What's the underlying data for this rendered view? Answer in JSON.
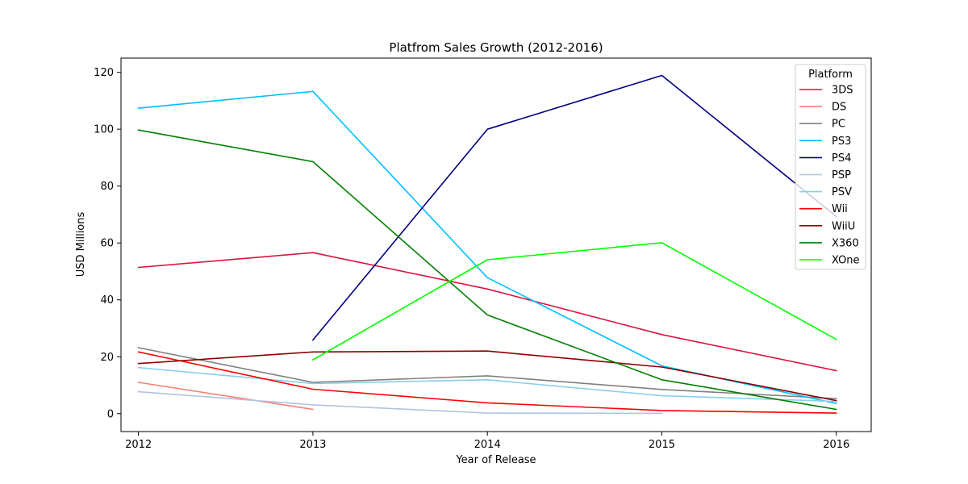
{
  "chart_data": {
    "type": "line",
    "title": "Platfrom Sales Growth (2012-2016)",
    "xlabel": "Year of Release",
    "ylabel": "USD Millions",
    "x": [
      2012,
      2013,
      2014,
      2015,
      2016
    ],
    "ylim": [
      -6.3,
      125
    ],
    "yticks": [
      0,
      20,
      40,
      60,
      80,
      100,
      120
    ],
    "grid": false,
    "legend": {
      "title": "Platform",
      "placement": "top-right"
    },
    "series": [
      {
        "name": "3DS",
        "color": "#dc143c",
        "values": [
          51.4,
          56.6,
          43.8,
          27.8,
          15.1
        ]
      },
      {
        "name": "DS",
        "color": "#fa8072",
        "values": [
          11.0,
          1.5,
          null,
          null,
          null
        ]
      },
      {
        "name": "PC",
        "color": "#808080",
        "values": [
          23.2,
          11.0,
          13.3,
          8.5,
          5.3
        ]
      },
      {
        "name": "PS3",
        "color": "#00bfff",
        "values": [
          107.4,
          113.3,
          47.8,
          16.8,
          3.6
        ]
      },
      {
        "name": "PS4",
        "color": "#000080",
        "values": [
          null,
          25.9,
          100.0,
          118.9,
          69.3
        ]
      },
      {
        "name": "PSP",
        "color": "#b0c4de",
        "values": [
          7.7,
          3.1,
          0.2,
          0.1,
          null
        ]
      },
      {
        "name": "PSV",
        "color": "#87ceeb",
        "values": [
          16.2,
          10.6,
          11.9,
          6.3,
          4.3
        ]
      },
      {
        "name": "Wii",
        "color": "#ff0000",
        "values": [
          21.7,
          8.6,
          3.8,
          1.1,
          0.2
        ]
      },
      {
        "name": "WiiU",
        "color": "#8b0000",
        "values": [
          17.6,
          21.7,
          22.0,
          16.4,
          4.6
        ]
      },
      {
        "name": "X360",
        "color": "#008000",
        "values": [
          99.7,
          88.6,
          34.7,
          11.9,
          1.5
        ]
      },
      {
        "name": "XOne",
        "color": "#00ff00",
        "values": [
          null,
          18.9,
          54.1,
          60.1,
          26.1
        ]
      }
    ]
  }
}
